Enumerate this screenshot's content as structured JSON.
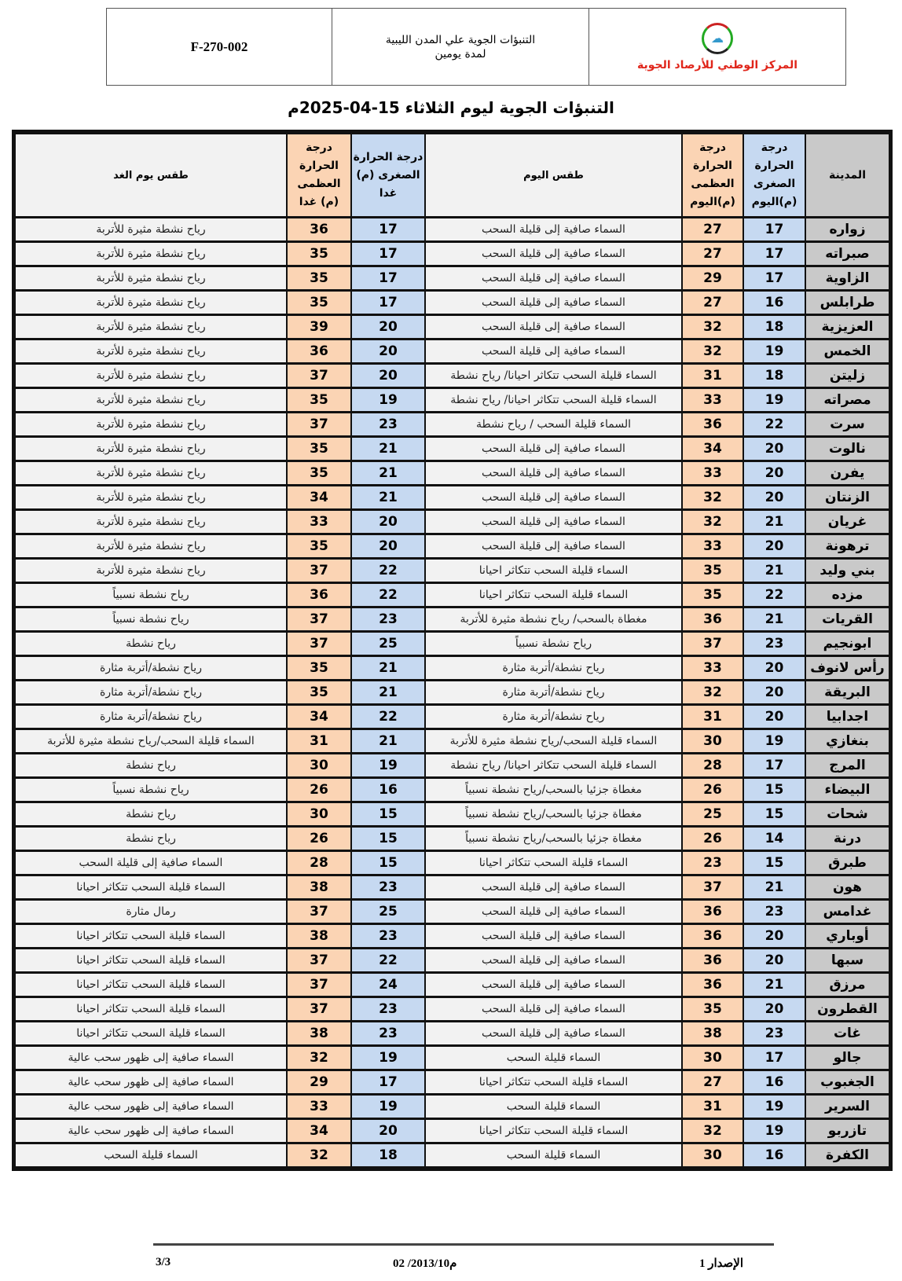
{
  "header": {
    "code": "F-270-002",
    "doc_title_line1": "التنبؤات الجوية علي المدن الليبية",
    "doc_title_line2": "لمدة يومين",
    "org_name": "المركز الوطني للأرصاد الجوية"
  },
  "title": "التنبؤات الجوية ليوم الثلاثاء 15-04-2025م",
  "columns": {
    "city": "المدينة",
    "min_today": "درجة الحرارة الصغرى (م)اليوم",
    "max_today": "درجة الحرارة العظمى (م)اليوم",
    "weather_today": "طقس اليوم",
    "min_tomorrow": "درجة الحرارة الصغرى (م) غدا",
    "max_tomorrow": "درجة الحرارة العظمى (م) غدا",
    "weather_tomorrow": "طقس يوم الغد"
  },
  "colors": {
    "min": "#c6d9f1",
    "max": "#fbd4b4",
    "city": "#c9c9c9"
  },
  "rows": [
    [
      "زواره",
      "17",
      "27",
      "السماء صافية إلى قليلة السحب",
      "17",
      "36",
      "رياح نشطة مثيرة للأتربة"
    ],
    [
      "صبراته",
      "17",
      "27",
      "السماء صافية إلى قليلة السحب",
      "17",
      "35",
      "رياح نشطة مثيرة للأتربة"
    ],
    [
      "الزاوية",
      "17",
      "29",
      "السماء صافية إلى قليلة السحب",
      "17",
      "35",
      "رياح نشطة مثيرة للأتربة"
    ],
    [
      "طرابلس",
      "16",
      "27",
      "السماء صافية إلى قليلة السحب",
      "17",
      "35",
      "رياح نشطة مثيرة للأتربة"
    ],
    [
      "العزيزية",
      "18",
      "32",
      "السماء صافية إلى قليلة السحب",
      "20",
      "39",
      "رياح نشطة مثيرة للأتربة"
    ],
    [
      "الخمس",
      "19",
      "32",
      "السماء صافية إلى قليلة السحب",
      "20",
      "36",
      "رياح نشطة مثيرة للأتربة"
    ],
    [
      "زليتن",
      "18",
      "31",
      "السماء قليلة السحب تتكاثر احيانا/ رياح نشطة",
      "20",
      "37",
      "رياح نشطة مثيرة للأتربة"
    ],
    [
      "مصراته",
      "19",
      "33",
      "السماء قليلة السحب تتكاثر احيانا/ رياح نشطة",
      "19",
      "35",
      "رياح نشطة مثيرة للأتربة"
    ],
    [
      "سرت",
      "22",
      "36",
      "السماء قليلة السحب / رياح نشطة",
      "23",
      "37",
      "رياح نشطة مثيرة للأتربة"
    ],
    [
      "نالوت",
      "20",
      "34",
      "السماء صافية إلى قليلة السحب",
      "21",
      "35",
      "رياح نشطة مثيرة للأتربة"
    ],
    [
      "يفرن",
      "20",
      "33",
      "السماء صافية إلى قليلة السحب",
      "21",
      "35",
      "رياح نشطة مثيرة للأتربة"
    ],
    [
      "الزنتان",
      "20",
      "32",
      "السماء صافية إلى قليلة السحب",
      "21",
      "34",
      "رياح نشطة مثيرة للأتربة"
    ],
    [
      "غريان",
      "21",
      "32",
      "السماء صافية إلى قليلة السحب",
      "20",
      "33",
      "رياح نشطة مثيرة للأتربة"
    ],
    [
      "ترهونة",
      "20",
      "33",
      "السماء صافية إلى قليلة السحب",
      "20",
      "35",
      "رياح نشطة مثيرة للأتربة"
    ],
    [
      "بني وليد",
      "21",
      "35",
      "السماء قليلة السحب تتكاثر احيانا",
      "22",
      "37",
      "رياح نشطة مثيرة للأتربة"
    ],
    [
      "مزده",
      "22",
      "35",
      "السماء قليلة السحب تتكاثر احيانا",
      "22",
      "36",
      "رياح نشطة نسبياً"
    ],
    [
      "القريات",
      "21",
      "36",
      "مغطاة بالسحب/ رياح نشطة مثيرة للأتربة",
      "23",
      "37",
      "رياح نشطة نسبياً"
    ],
    [
      "ابونجيم",
      "23",
      "37",
      "رياح نشطة نسبياً",
      "25",
      "37",
      "رياح نشطة"
    ],
    [
      "رأس لانوف",
      "20",
      "33",
      "رياح نشطة/أتربة مثارة",
      "21",
      "35",
      "رياح نشطة/أتربة مثارة"
    ],
    [
      "البريقة",
      "20",
      "32",
      "رياح نشطة/أتربة مثارة",
      "21",
      "35",
      "رياح نشطة/أتربة مثارة"
    ],
    [
      "اجدابيا",
      "20",
      "31",
      "رياح نشطة/أتربة مثارة",
      "22",
      "34",
      "رياح نشطة/أتربة مثارة"
    ],
    [
      "بنغازي",
      "19",
      "30",
      "السماء قليلة السحب/رياح نشطة مثيرة للأتربة",
      "21",
      "31",
      "السماء قليلة السحب/رياح نشطة مثيرة للأتربة"
    ],
    [
      "المرج",
      "17",
      "28",
      "السماء قليلة السحب تتكاثر احيانا/ رياح نشطة",
      "19",
      "30",
      "رياح نشطة"
    ],
    [
      "البيضاء",
      "15",
      "26",
      "مغطاة جزئيا بالسحب/رياح نشطة نسبياً",
      "16",
      "26",
      "رياح نشطة نسبياً"
    ],
    [
      "شحات",
      "15",
      "25",
      "مغطاة جزئيا بالسحب/رياح نشطة نسبياً",
      "15",
      "30",
      "رياح نشطة"
    ],
    [
      "درنة",
      "14",
      "26",
      "مغطاة جزئيا بالسحب/رياح نشطة نسبياً",
      "15",
      "26",
      "رياح نشطة"
    ],
    [
      "طبرق",
      "15",
      "23",
      "السماء قليلة السحب تتكاثر احيانا",
      "15",
      "28",
      "السماء صافية إلى قليلة السحب"
    ],
    [
      "هون",
      "21",
      "37",
      "السماء صافية إلى قليلة السحب",
      "23",
      "38",
      "السماء قليلة السحب تتكاثر احيانا"
    ],
    [
      "غدامس",
      "23",
      "36",
      "السماء صافية إلى قليلة السحب",
      "25",
      "37",
      "رمال مثارة"
    ],
    [
      "أوباري",
      "20",
      "36",
      "السماء صافية إلى قليلة السحب",
      "23",
      "38",
      "السماء قليلة السحب تتكاثر احيانا"
    ],
    [
      "سبها",
      "20",
      "36",
      "السماء صافية إلى قليلة السحب",
      "22",
      "37",
      "السماء قليلة السحب تتكاثر احيانا"
    ],
    [
      "مرزق",
      "21",
      "36",
      "السماء صافية إلى قليلة السحب",
      "24",
      "37",
      "السماء قليلة السحب تتكاثر احيانا"
    ],
    [
      "القطرون",
      "20",
      "35",
      "السماء صافية إلى قليلة السحب",
      "23",
      "37",
      "السماء قليلة السحب تتكاثر احيانا"
    ],
    [
      "غات",
      "23",
      "38",
      "السماء صافية إلى قليلة السحب",
      "23",
      "38",
      "السماء قليلة السحب تتكاثر احيانا"
    ],
    [
      "جالو",
      "17",
      "30",
      "السماء قليلة السحب",
      "19",
      "32",
      "السماء صافية إلى ظهور سحب عالية"
    ],
    [
      "الجغبوب",
      "16",
      "27",
      "السماء قليلة السحب تتكاثر احيانا",
      "17",
      "29",
      "السماء صافية إلى ظهور سحب عالية"
    ],
    [
      "السرير",
      "19",
      "31",
      "السماء قليلة السحب",
      "19",
      "33",
      "السماء صافية إلى ظهور سحب عالية"
    ],
    [
      "تازربو",
      "19",
      "32",
      "السماء قليلة السحب تتكاثر احيانا",
      "20",
      "34",
      "السماء صافية إلى ظهور سحب عالية"
    ],
    [
      "الكفرة",
      "16",
      "30",
      "السماء قليلة السحب",
      "18",
      "32",
      "السماء قليلة السحب"
    ]
  ],
  "footer": {
    "version": "الإصدار 1",
    "date": "02 /2013/10م",
    "page": "3/3"
  }
}
